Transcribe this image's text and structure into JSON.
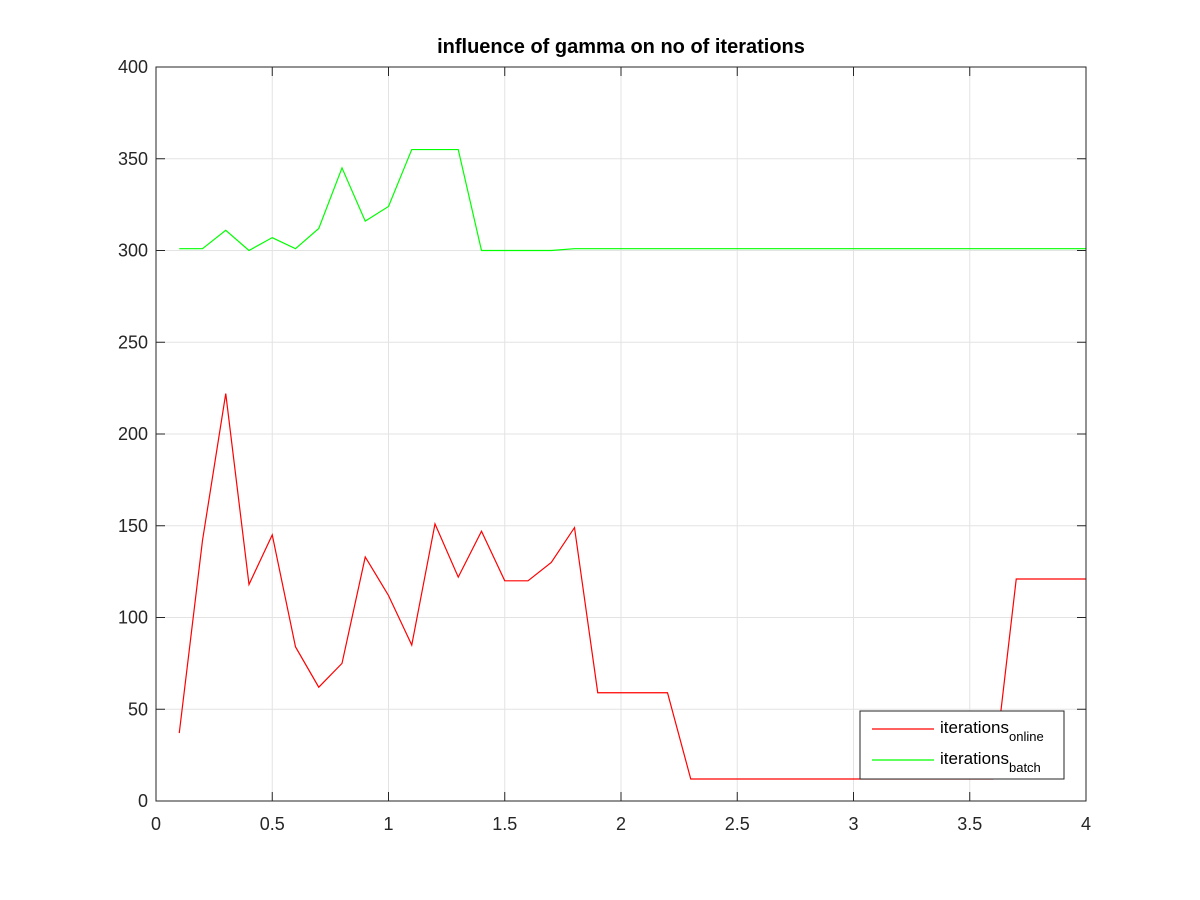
{
  "chart_data": {
    "type": "line",
    "title": "influence of gamma on no of iterations",
    "xlabel": "",
    "ylabel": "",
    "xlim": [
      0,
      4
    ],
    "ylim": [
      0,
      400
    ],
    "grid": true,
    "legend_location": "bottom-right",
    "x_ticks": [
      0,
      0.5,
      1,
      1.5,
      2,
      2.5,
      3,
      3.5,
      4
    ],
    "x_tick_labels": [
      "0",
      "0.5",
      "1",
      "1.5",
      "2",
      "2.5",
      "3",
      "3.5",
      "4"
    ],
    "y_ticks": [
      0,
      50,
      100,
      150,
      200,
      250,
      300,
      350,
      400
    ],
    "y_tick_labels": [
      "0",
      "50",
      "100",
      "150",
      "200",
      "250",
      "300",
      "350",
      "400"
    ],
    "x": [
      0.1,
      0.2,
      0.3,
      0.4,
      0.5,
      0.6,
      0.7,
      0.8,
      0.9,
      1.0,
      1.1,
      1.2,
      1.3,
      1.4,
      1.5,
      1.6,
      1.7,
      1.8,
      1.9,
      2.0,
      2.1,
      2.2,
      2.3,
      2.4,
      2.5,
      2.6,
      2.7,
      2.8,
      2.9,
      3.0,
      3.1,
      3.2,
      3.3,
      3.4,
      3.5,
      3.6,
      3.7,
      3.8,
      3.9,
      4.0
    ],
    "series": [
      {
        "name": "iterations_online",
        "label_main": "iterations",
        "label_sub": "online",
        "color": "#ff0000",
        "values": [
          37,
          142,
          222,
          118,
          145,
          84,
          62,
          75,
          133,
          112,
          85,
          151,
          122,
          147,
          120,
          120,
          130,
          149,
          59,
          59,
          59,
          59,
          12,
          12,
          12,
          12,
          12,
          12,
          12,
          12,
          12,
          12,
          12,
          12,
          12,
          12,
          121,
          121,
          121,
          121
        ]
      },
      {
        "name": "iterations_batch",
        "label_main": "iterations",
        "label_sub": "batch",
        "color": "#00ff00",
        "values": [
          301,
          301,
          311,
          300,
          307,
          301,
          312,
          345,
          316,
          324,
          355,
          355,
          355,
          300,
          300,
          300,
          300,
          301,
          301,
          301,
          301,
          301,
          301,
          301,
          301,
          301,
          301,
          301,
          301,
          301,
          301,
          301,
          301,
          301,
          301,
          301,
          301,
          301,
          301,
          301
        ]
      }
    ]
  }
}
